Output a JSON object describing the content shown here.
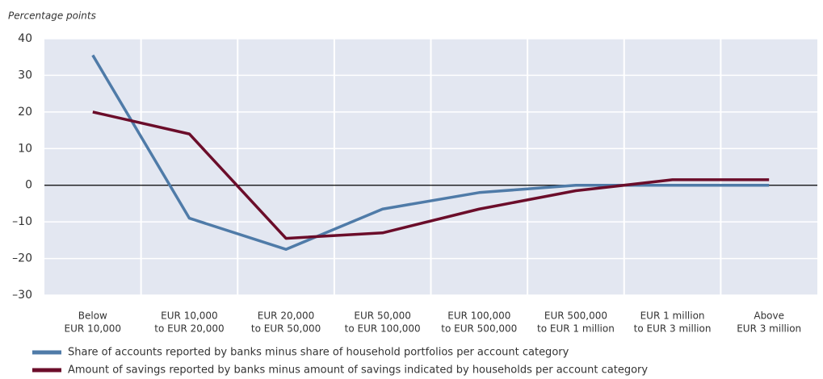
{
  "chart_data": {
    "type": "line",
    "y_label": "Percentage points",
    "categories": [
      [
        "Below",
        "EUR 10,000"
      ],
      [
        "EUR 10,000",
        "to EUR 20,000"
      ],
      [
        "EUR 20,000",
        "to EUR 50,000"
      ],
      [
        "EUR 50,000",
        "to EUR 100,000"
      ],
      [
        "EUR 100,000",
        "to EUR 500,000"
      ],
      [
        "EUR 500,000",
        "to EUR 1 million"
      ],
      [
        "EUR 1 million",
        "to EUR 3 million"
      ],
      [
        "Above",
        "EUR 3 million"
      ]
    ],
    "series": [
      {
        "name": "Share of accounts reported by banks minus share of household portfolios per account category",
        "color": "#4f7ba8",
        "values": [
          35.5,
          -9,
          -17.5,
          -6.5,
          -2,
          0,
          0,
          0
        ]
      },
      {
        "name": "Amount of savings reported by banks minus amount of savings indicated by households per account category",
        "color": "#6b0d2a",
        "values": [
          20,
          14,
          -14.5,
          -13,
          -6.5,
          -1.5,
          1.5,
          1.5
        ]
      }
    ],
    "ylim": [
      -30,
      40
    ],
    "yticks": [
      {
        "value": -30,
        "label": "–30"
      },
      {
        "value": -20,
        "label": "–20"
      },
      {
        "value": -10,
        "label": "–10"
      },
      0,
      10,
      20,
      30,
      40
    ],
    "grid": true
  }
}
